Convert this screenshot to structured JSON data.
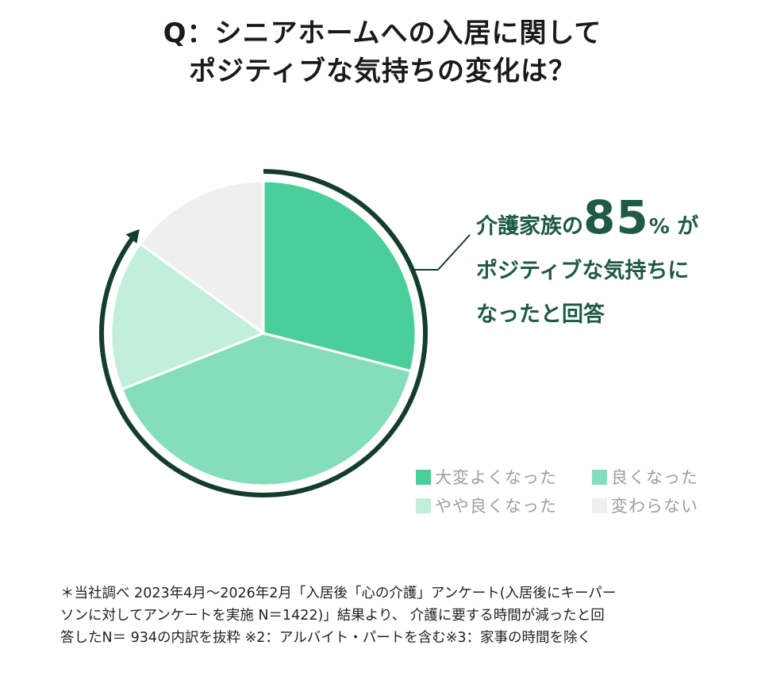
{
  "title": {
    "line1": "Q：シニアホームへの入居に関して",
    "line2": "ポジティブな気持ちの変化は？"
  },
  "callout": {
    "prefix": "介護家族の",
    "number": "85",
    "unit": "%",
    "suffix": "が",
    "line2": "ポジティブな気持ちに",
    "line3": "なったと回答"
  },
  "chart_data": {
    "type": "pie",
    "title": "",
    "series": [
      {
        "name": "大変よくなった",
        "value": 29,
        "color": "#4bcf9a"
      },
      {
        "name": "良くなった",
        "value": 40,
        "color": "#84debb"
      },
      {
        "name": "やや良くなった",
        "value": 16,
        "color": "#c2eedc"
      },
      {
        "name": "変わらない",
        "value": 15,
        "color": "#efefef"
      }
    ],
    "highlight_total": 85,
    "legend_position": "bottom-right"
  },
  "colors": {
    "arc": "#143d2c",
    "callout_text": "#1f5a44",
    "legend_text": "#9e9e9e"
  },
  "footnote": {
    "line1": "＊当社調べ 2023年4月～2026年2月「入居後「心の介護」アンケート(入居後にキーパー",
    "line2": "ソンに対してアンケートを実施 N＝1422)」結果より、 介護に要する時間が減ったと回",
    "line3": "答したN＝ 934の内訳を抜粋 ※2：アルバイト・パートを含む※3：家事の時間を除く"
  }
}
